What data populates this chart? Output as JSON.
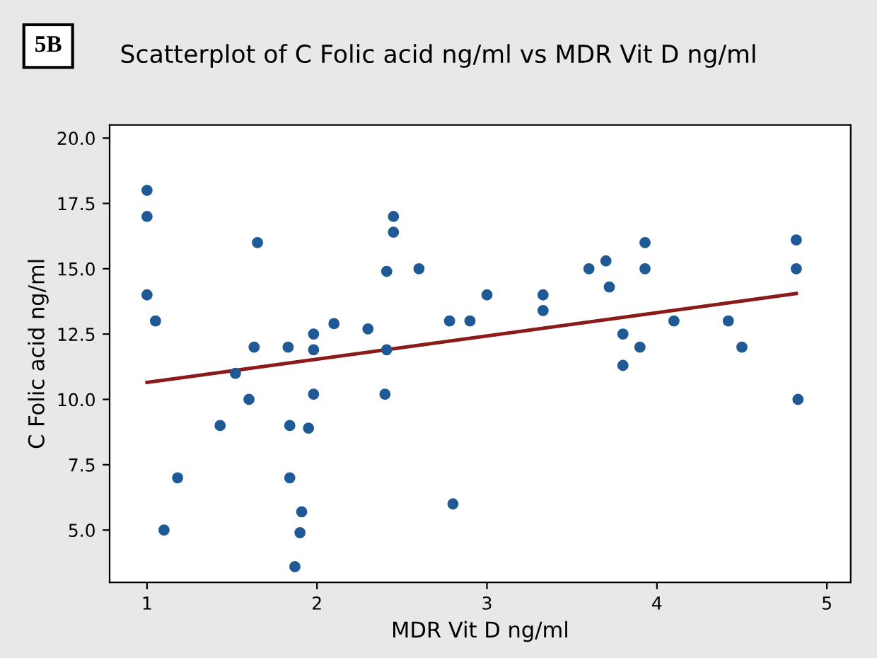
{
  "chart_data": {
    "type": "scatter",
    "title": "Scatterplot of C Folic acid ng/ml vs MDR Vit D ng/ml",
    "xlabel": "MDR Vit D ng/ml",
    "ylabel": "C Folic acid ng/ml",
    "annotations": [
      "5B"
    ],
    "xlim": [
      0.78,
      5.14
    ],
    "ylim": [
      3.0,
      20.5
    ],
    "xticks": [
      1,
      2,
      3,
      4,
      5
    ],
    "yticks": [
      {
        "value": 5,
        "label": "5.0"
      },
      {
        "value": 7.5,
        "label": "7.5"
      },
      {
        "value": 10,
        "label": "10.0"
      },
      {
        "value": 12.5,
        "label": "12.5"
      },
      {
        "value": 15,
        "label": "15.0"
      },
      {
        "value": 17.5,
        "label": "17.5"
      },
      {
        "value": 20,
        "label": "20.0"
      }
    ],
    "grid": false,
    "legend": false,
    "marker": "circle",
    "series": [
      {
        "color": "#1f5a96",
        "x": [
          1.0,
          1.0,
          1.0,
          1.05,
          1.1,
          1.18,
          1.43,
          1.52,
          1.6,
          1.63,
          1.65,
          1.83,
          1.84,
          1.84,
          1.87,
          1.9,
          1.91,
          1.95,
          1.98,
          1.98,
          1.98,
          2.1,
          2.3,
          2.4,
          2.41,
          2.41,
          2.45,
          2.45,
          2.6,
          2.78,
          2.8,
          2.9,
          3.0,
          3.33,
          3.33,
          3.6,
          3.7,
          3.72,
          3.8,
          3.8,
          3.9,
          3.93,
          3.93,
          4.1,
          4.42,
          4.5,
          4.82,
          4.82,
          4.83
        ],
        "values": [
          18.0,
          17.0,
          14.0,
          13.0,
          5.0,
          7.0,
          9.0,
          11.0,
          10.0,
          12.0,
          16.0,
          12.0,
          9.0,
          7.0,
          3.6,
          4.9,
          5.7,
          8.9,
          10.2,
          11.9,
          12.5,
          12.9,
          12.7,
          10.2,
          11.9,
          14.9,
          16.4,
          17.0,
          15.0,
          13.0,
          6.0,
          13.0,
          14.0,
          14.0,
          13.4,
          15.0,
          15.3,
          14.3,
          12.5,
          11.3,
          12.0,
          16.0,
          15.0,
          13.0,
          13.0,
          12.0,
          16.1,
          15.0,
          10.0
        ]
      },
      {
        "type": "line",
        "color": "#8b1a1a",
        "x": [
          1.0,
          4.82
        ],
        "values": [
          10.65,
          14.05
        ],
        "line_style": "solid",
        "marker": "none"
      }
    ]
  }
}
